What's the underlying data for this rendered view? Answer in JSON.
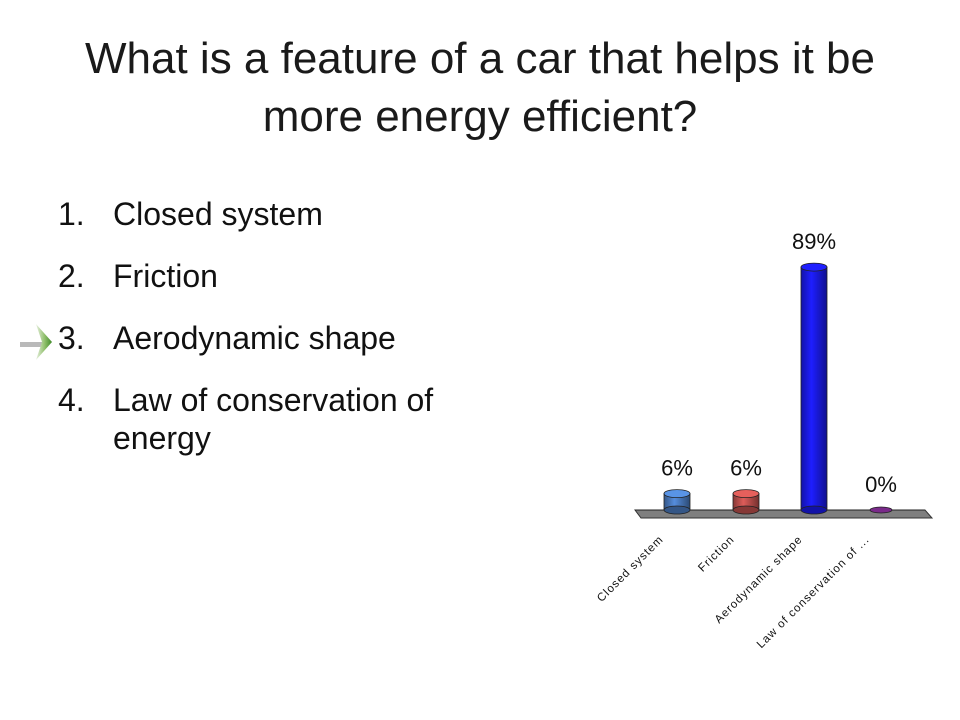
{
  "slide": {
    "title": "What is a feature of a car that helps it be more energy efficient?",
    "answers": [
      {
        "num": "1.",
        "text": "Closed system"
      },
      {
        "num": "2.",
        "text": "Friction"
      },
      {
        "num": "3.",
        "text": "Aerodynamic shape"
      },
      {
        "num": "4.",
        "text": "Law of conservation of energy"
      }
    ],
    "correct_indicator_icon": "right-arrow-icon"
  },
  "chart_data": {
    "type": "bar",
    "categories": [
      "Closed system",
      "Friction",
      "Aerodynamic shape",
      "Law of conservation of ..."
    ],
    "values": [
      6,
      6,
      89,
      0
    ],
    "data_labels": [
      "6%",
      "6%",
      "89%",
      "0%"
    ],
    "unit": "%",
    "ylim": [
      0,
      100
    ],
    "colors": [
      "#4a7bc0",
      "#c0504d",
      "#1a1aee",
      "#7a2a8a"
    ],
    "style": "3d-cylinder",
    "grid": false,
    "legend": "none"
  }
}
